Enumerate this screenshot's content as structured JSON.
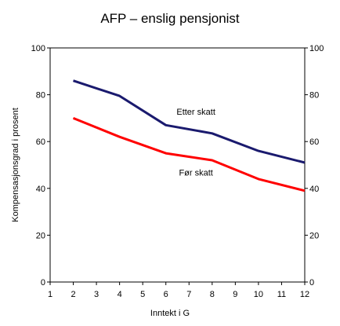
{
  "chart_data": {
    "type": "line",
    "title": "AFP – enslig pensjonist",
    "xlabel": "Inntekt i G",
    "ylabel": "Kompensasjonsgrad i prosent",
    "xlim": [
      1,
      12
    ],
    "ylim": [
      0,
      100
    ],
    "x_ticks": [
      1,
      2,
      3,
      4,
      5,
      6,
      7,
      8,
      9,
      10,
      11,
      12
    ],
    "y_ticks": [
      0,
      20,
      40,
      60,
      80,
      100
    ],
    "grid": false,
    "secondary_y_axis": true,
    "series": [
      {
        "name": "Etter skatt",
        "color": "#1a1a6e",
        "x": [
          2,
          4,
          6,
          8,
          10,
          12
        ],
        "values": [
          86,
          79.5,
          67,
          63.5,
          56,
          51
        ]
      },
      {
        "name": "Før skatt",
        "color": "#ff0000",
        "x": [
          2,
          4,
          6,
          8,
          10,
          12
        ],
        "values": [
          70,
          62,
          55,
          52,
          44,
          39
        ]
      }
    ],
    "annotations": [
      {
        "text": "Etter skatt",
        "x": 7.3,
        "y": 71.5
      },
      {
        "text": "Før skatt",
        "x": 7.3,
        "y": 45.5
      }
    ]
  }
}
